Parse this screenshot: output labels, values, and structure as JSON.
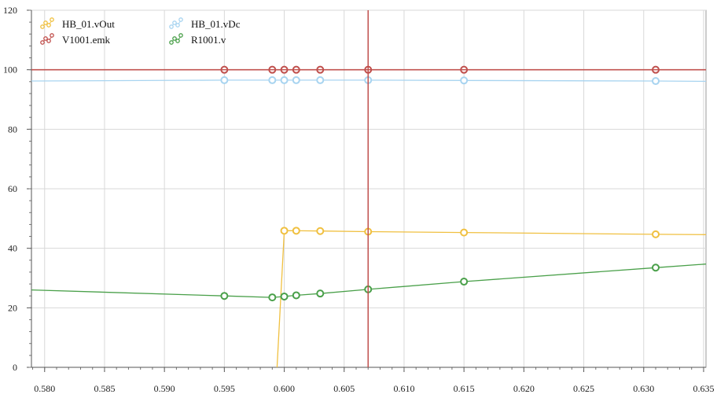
{
  "chart_data": {
    "type": "line",
    "title": "",
    "xlabel": "",
    "ylabel": "",
    "xlim": [
      0.5789,
      0.6352
    ],
    "ylim": [
      0,
      120
    ],
    "x_ticks": [
      0.58,
      0.585,
      0.59,
      0.595,
      0.6,
      0.605,
      0.61,
      0.615,
      0.62,
      0.625,
      0.63,
      0.635
    ],
    "x_tick_labels": [
      "0.580",
      "0.585",
      "0.590",
      "0.595",
      "0.600",
      "0.605",
      "0.610",
      "0.615",
      "0.620",
      "0.625",
      "0.630",
      "0.635"
    ],
    "y_ticks": [
      0,
      20,
      40,
      60,
      80,
      100,
      120
    ],
    "y_tick_labels": [
      "0",
      "20",
      "40",
      "60",
      "80",
      "100",
      "120"
    ],
    "grid": true,
    "legend_position": "top-left",
    "cursor_x": 0.607,
    "cursor_y": 100,
    "cursor_color": "#c0504d",
    "series": [
      {
        "name": "HB_01.vOut",
        "color": "#f0c040",
        "x": [
          0.5994,
          0.6,
          0.601,
          0.603,
          0.607,
          0.615,
          0.631,
          0.6352
        ],
        "y": [
          0,
          45.9,
          45.9,
          45.8,
          45.6,
          45.3,
          44.7,
          44.6
        ],
        "marker_x": [
          0.6,
          0.601,
          0.603,
          0.607,
          0.615,
          0.631
        ],
        "marker_y": [
          45.9,
          45.9,
          45.8,
          45.6,
          45.3,
          44.7
        ]
      },
      {
        "name": "HB_01.vDc",
        "color": "#a8d4f0",
        "x": [
          0.5789,
          0.595,
          0.599,
          0.6,
          0.601,
          0.603,
          0.607,
          0.615,
          0.631,
          0.6352
        ],
        "y": [
          96.2,
          96.5,
          96.5,
          96.5,
          96.5,
          96.5,
          96.5,
          96.4,
          96.2,
          96.1
        ],
        "marker_x": [
          0.595,
          0.599,
          0.6,
          0.601,
          0.603,
          0.607,
          0.615,
          0.631
        ],
        "marker_y": [
          96.5,
          96.5,
          96.5,
          96.5,
          96.5,
          96.5,
          96.4,
          96.2
        ]
      },
      {
        "name": "V1001.emk",
        "color": "#c0504d",
        "x": [
          0.5789,
          0.595,
          0.599,
          0.6,
          0.601,
          0.603,
          0.607,
          0.615,
          0.631,
          0.6352
        ],
        "y": [
          100,
          100,
          100,
          100,
          100,
          100,
          100,
          100,
          100,
          100
        ],
        "marker_x": [
          0.595,
          0.599,
          0.6,
          0.601,
          0.603,
          0.607,
          0.615,
          0.631
        ],
        "marker_y": [
          100,
          100,
          100,
          100,
          100,
          100,
          100,
          100
        ]
      },
      {
        "name": "R1001.v",
        "color": "#4aa04a",
        "x": [
          0.5789,
          0.595,
          0.599,
          0.6,
          0.601,
          0.603,
          0.607,
          0.615,
          0.631,
          0.6352
        ],
        "y": [
          26.0,
          24.0,
          23.5,
          23.8,
          24.2,
          24.8,
          26.2,
          28.8,
          33.5,
          34.7
        ],
        "marker_x": [
          0.595,
          0.599,
          0.6,
          0.601,
          0.603,
          0.607,
          0.615,
          0.631
        ],
        "marker_y": [
          24.0,
          23.5,
          23.8,
          24.2,
          24.8,
          26.2,
          28.8,
          33.5
        ]
      }
    ]
  }
}
